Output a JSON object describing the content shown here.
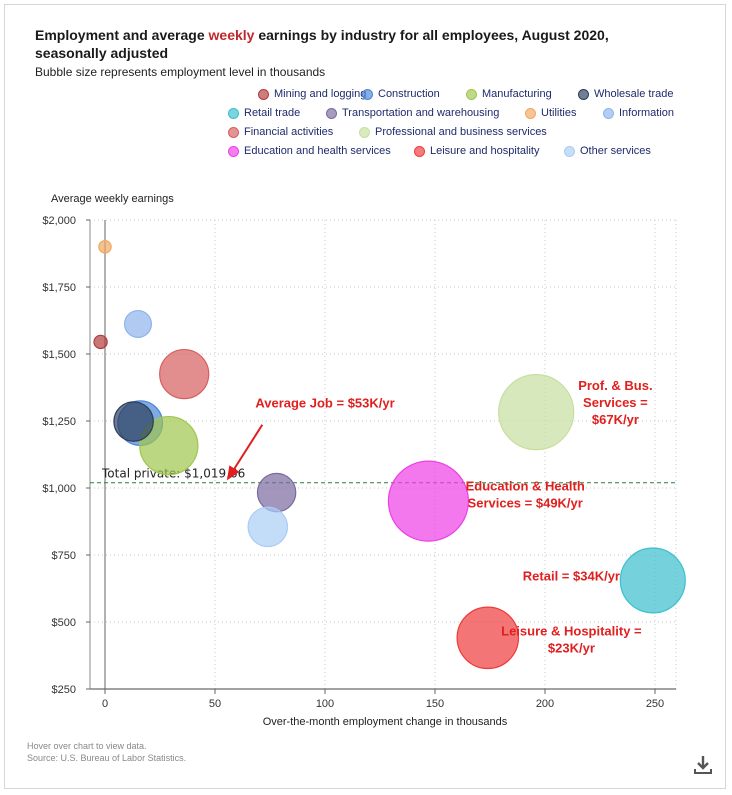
{
  "title": {
    "before": "Employment and average ",
    "highlight": "weekly",
    "after": " earnings by industry for all employees, August 2020, seasonally adjusted"
  },
  "subtitle": "Bubble size represents employment level in thousands",
  "legend": [
    {
      "label": "Mining and logging",
      "color": "#b23c3c"
    },
    {
      "label": "Construction",
      "color": "#4a86d8"
    },
    {
      "label": "Manufacturing",
      "color": "#9fc64c"
    },
    {
      "label": "Wholesale trade",
      "color": "#2c3e5c"
    },
    {
      "label": "Retail trade",
      "color": "#3bbfcf"
    },
    {
      "label": "Transportation and warehousing",
      "color": "#7a6aa0"
    },
    {
      "label": "Utilities",
      "color": "#f0a860"
    },
    {
      "label": "Information",
      "color": "#8fb4ec"
    },
    {
      "label": "Financial activities",
      "color": "#d75e5e"
    },
    {
      "label": "Professional and business services",
      "color": "#c6df9f"
    },
    {
      "label": "Education and health services",
      "color": "#ee3fe6"
    },
    {
      "label": "Leisure and hospitality",
      "color": "#f03a3a"
    },
    {
      "label": "Other services",
      "color": "#a9cdf5"
    }
  ],
  "chart_data": {
    "type": "scatter",
    "bubble": true,
    "title": "Employment and average weekly earnings by industry for all employees, August 2020, seasonally adjusted",
    "xlabel": "Over-the-month employment change in thousands",
    "ylabel": "Average weekly earnings",
    "xlim": [
      -7,
      259
    ],
    "ylim": [
      250,
      2000
    ],
    "xticks": [
      0,
      50,
      100,
      150,
      200,
      250
    ],
    "yticks": [
      250,
      500,
      750,
      1000,
      1250,
      1500,
      1750,
      2000
    ],
    "ytick_labels": [
      "$250",
      "$500",
      "$750",
      "$1,000",
      "$1,250",
      "$1,500",
      "$1,750",
      "$2,000"
    ],
    "points": [
      {
        "name": "Mining and logging",
        "x": -2,
        "y": 1545,
        "size": 630,
        "color": "#b23c3c"
      },
      {
        "name": "Construction",
        "x": 16,
        "y": 1242,
        "size": 7200,
        "color": "#4a86d8"
      },
      {
        "name": "Manufacturing",
        "x": 29,
        "y": 1158,
        "size": 12200,
        "color": "#9fc64c"
      },
      {
        "name": "Wholesale trade",
        "x": 13,
        "y": 1248,
        "size": 5600,
        "color": "#2c3e5c"
      },
      {
        "name": "Retail trade",
        "x": 249,
        "y": 655,
        "size": 15200,
        "color": "#3bbfcf"
      },
      {
        "name": "Transportation and warehousing",
        "x": 78,
        "y": 983,
        "size": 5300,
        "color": "#7a6aa0"
      },
      {
        "name": "Utilities",
        "x": 0,
        "y": 1900,
        "size": 550,
        "color": "#f0a860"
      },
      {
        "name": "Information",
        "x": 15,
        "y": 1612,
        "size": 2600,
        "color": "#8fb4ec"
      },
      {
        "name": "Financial activities",
        "x": 36,
        "y": 1425,
        "size": 8700,
        "color": "#d75e5e"
      },
      {
        "name": "Professional and business services",
        "x": 196,
        "y": 1283,
        "size": 20300,
        "color": "#c6df9f"
      },
      {
        "name": "Education and health services",
        "x": 147,
        "y": 951,
        "size": 23100,
        "color": "#ee3fe6"
      },
      {
        "name": "Leisure and hospitality",
        "x": 174,
        "y": 441,
        "size": 13600,
        "color": "#f03a3a"
      },
      {
        "name": "Other services",
        "x": 74,
        "y": 855,
        "size": 5600,
        "color": "#a9cdf5"
      }
    ],
    "reference_line": {
      "y": 1019.66,
      "label": "Total private: $1,019.66"
    },
    "annotations": [
      {
        "lines": [
          "Average Job = $53K/yr"
        ],
        "x": 100,
        "y": 1300,
        "arrow_to": [
          55,
          1020
        ]
      },
      {
        "lines": [
          "Prof. & Bus.",
          "Services =",
          "$67K/yr"
        ],
        "x": 232,
        "y": 1365
      },
      {
        "lines": [
          "Education & Health",
          "Services = $49K/yr"
        ],
        "x": 191,
        "y": 990
      },
      {
        "lines": [
          "Retail = $34K/yr"
        ],
        "x": 212,
        "y": 655
      },
      {
        "lines": [
          "Leisure & Hospitality =",
          "$23K/yr"
        ],
        "x": 212,
        "y": 450
      }
    ]
  },
  "footer": {
    "hint": "Hover over chart to view data.",
    "source": "Source: U.S. Bureau of Labor Statistics."
  },
  "download_icon": "download-icon"
}
